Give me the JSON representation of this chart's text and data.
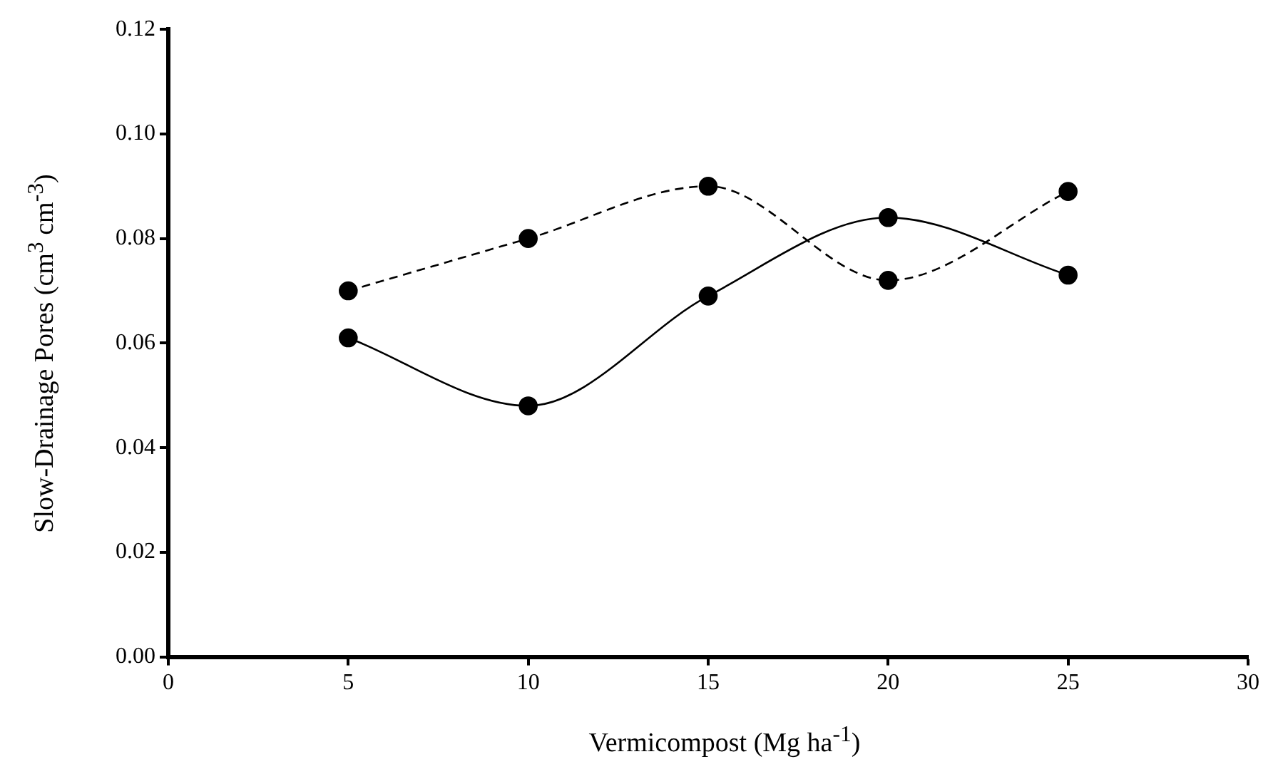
{
  "chart_data": {
    "type": "line",
    "xlabel": "Vermicompost (Mg ha$^{-1}$)",
    "ylabel": "Slow-Drainage  Pores (cm$^{3}$ cm$^{-3}$)",
    "x": [
      5,
      10,
      15,
      20,
      25
    ],
    "series": [
      {
        "color": "#000000",
        "line_style": "dashed",
        "values": [
          0.07,
          0.08,
          0.09,
          0.072,
          0.089
        ]
      },
      {
        "color": "#000000",
        "line_style": "solid",
        "values": [
          0.061,
          0.048,
          0.069,
          0.084,
          0.073
        ]
      }
    ],
    "xlim": [
      0,
      30
    ],
    "xticks": [
      0,
      5,
      10,
      15,
      20,
      25,
      30
    ],
    "ylim": [
      0,
      0.12
    ],
    "yticks": [
      {
        "value": 0,
        "label": "0.00"
      },
      {
        "value": 0.02,
        "label": "0.02"
      },
      {
        "value": 0.04,
        "label": "0.04"
      },
      {
        "value": 0.06,
        "label": "0.06"
      },
      {
        "value": 0.08,
        "label": "0.08"
      },
      {
        "value": 0.1,
        "label": "0.10"
      },
      {
        "value": 0.12,
        "label": "0.12"
      }
    ],
    "marker": "circle",
    "grid": false,
    "legend": false
  }
}
